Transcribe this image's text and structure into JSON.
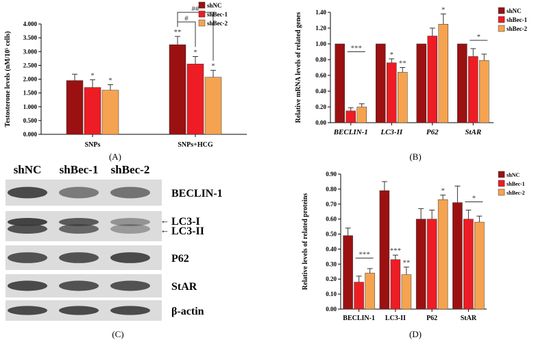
{
  "colors": {
    "shNC": "#9b1111",
    "shBec1": "#ee1c24",
    "shBec2": "#f5a350",
    "blot_bg": "#dcdcdc",
    "band": "#3a3a3a"
  },
  "chart_data": [
    {
      "id": "A",
      "type": "bar",
      "panel_label": "(A)",
      "ylabel": "Testosterone levels (nM/10⁵ cells)",
      "ylim": [
        0,
        4
      ],
      "yticks": [
        "0.000",
        "0.500",
        "1.000",
        "1.500",
        "2.000",
        "2.500",
        "3.000",
        "3.500",
        "4.000"
      ],
      "categories": [
        "SNPs",
        "SNPs+HCG"
      ],
      "series": [
        {
          "name": "shNC",
          "values": [
            1.95,
            3.25
          ],
          "errors": [
            0.23,
            0.3
          ],
          "marks": [
            "",
            "**"
          ]
        },
        {
          "name": "shBec-1",
          "values": [
            1.7,
            2.55
          ],
          "errors": [
            0.28,
            0.27
          ],
          "marks": [
            "*",
            "*"
          ]
        },
        {
          "name": "shBec-2",
          "values": [
            1.6,
            2.07
          ],
          "errors": [
            0.2,
            0.25
          ],
          "marks": [
            "*",
            "*"
          ]
        }
      ],
      "brackets": [
        {
          "label": "#",
          "from_series": 0,
          "to_series": 1,
          "category": 1
        },
        {
          "label": "##",
          "from_series": 0,
          "to_series": 2,
          "category": 1
        }
      ],
      "legend": [
        "shNC",
        "shBec-1",
        "shBec-2"
      ]
    },
    {
      "id": "B",
      "type": "bar",
      "panel_label": "(B)",
      "ylabel": "Relative mRNA levels of related genes",
      "ylim": [
        0,
        1.4
      ],
      "yticks": [
        "0.00",
        "0.20",
        "0.40",
        "0.60",
        "0.80",
        "1.00",
        "1.20",
        "1.40"
      ],
      "categories": [
        "BECLIN-1",
        "LC3-II",
        "P62",
        "StAR"
      ],
      "series": [
        {
          "name": "shNC",
          "values": [
            1.0,
            1.0,
            1.0,
            1.0
          ],
          "errors": [
            0,
            0,
            0,
            0
          ],
          "marks": [
            "",
            "",
            "",
            ""
          ]
        },
        {
          "name": "shBec-1",
          "values": [
            0.15,
            0.76,
            1.1,
            0.84
          ],
          "errors": [
            0.04,
            0.05,
            0.1,
            0.1
          ],
          "marks": [
            "",
            "*",
            "",
            ""
          ]
        },
        {
          "name": "shBec-2",
          "values": [
            0.2,
            0.64,
            1.25,
            0.79
          ],
          "errors": [
            0.04,
            0.06,
            0.13,
            0.08
          ],
          "marks": [
            "",
            "**",
            "*",
            ""
          ]
        }
      ],
      "group_marks": [
        {
          "category": 0,
          "label": "***"
        },
        {
          "category": 3,
          "label": "*"
        }
      ],
      "legend": [
        "shNC",
        "shBec-1",
        "shBec-2"
      ]
    },
    {
      "id": "D",
      "type": "bar",
      "panel_label": "(D)",
      "ylabel": "Relative levels of related proteins",
      "ylim": [
        0,
        0.9
      ],
      "yticks": [
        "0.00",
        "0.10",
        "0.20",
        "0.30",
        "0.40",
        "0.50",
        "0.60",
        "0.70",
        "0.80",
        "0.90"
      ],
      "categories": [
        "BECLIN-1",
        "LC3-II",
        "P62",
        "StAR"
      ],
      "series": [
        {
          "name": "shNC",
          "values": [
            0.49,
            0.79,
            0.6,
            0.71
          ],
          "errors": [
            0.05,
            0.06,
            0.07,
            0.11
          ],
          "marks": [
            "",
            "",
            "",
            ""
          ]
        },
        {
          "name": "shBec-1",
          "values": [
            0.18,
            0.33,
            0.6,
            0.6
          ],
          "errors": [
            0.04,
            0.03,
            0.06,
            0.06
          ],
          "marks": [
            "",
            "***",
            "",
            ""
          ]
        },
        {
          "name": "shBec-2",
          "values": [
            0.24,
            0.23,
            0.73,
            0.58
          ],
          "errors": [
            0.03,
            0.05,
            0.03,
            0.04
          ],
          "marks": [
            "",
            "**",
            "*",
            ""
          ]
        }
      ],
      "group_marks": [
        {
          "category": 0,
          "label": "***"
        },
        {
          "category": 3,
          "label": "*"
        }
      ],
      "legend": [
        "shNC",
        "shBec-1",
        "shBec-2"
      ]
    }
  ],
  "blot": {
    "panel_label": "(C)",
    "lanes": [
      "shNC",
      "shBec-1",
      "shBec-2"
    ],
    "rows": [
      {
        "label": "BECLIN-1",
        "arrows": [],
        "intensity": [
          0.9,
          0.6,
          0.65
        ]
      },
      {
        "label": "",
        "arrows": [
          "LC3-I",
          "LC3-II"
        ],
        "intensity": [
          0.95,
          0.8,
          0.45
        ]
      },
      {
        "label": "P62",
        "arrows": [],
        "intensity": [
          0.85,
          0.85,
          0.9
        ]
      },
      {
        "label": "StAR",
        "arrows": [],
        "intensity": [
          0.9,
          0.85,
          0.85
        ]
      },
      {
        "label": "β-actin",
        "arrows": [],
        "intensity": [
          0.9,
          0.9,
          0.9
        ]
      }
    ]
  }
}
